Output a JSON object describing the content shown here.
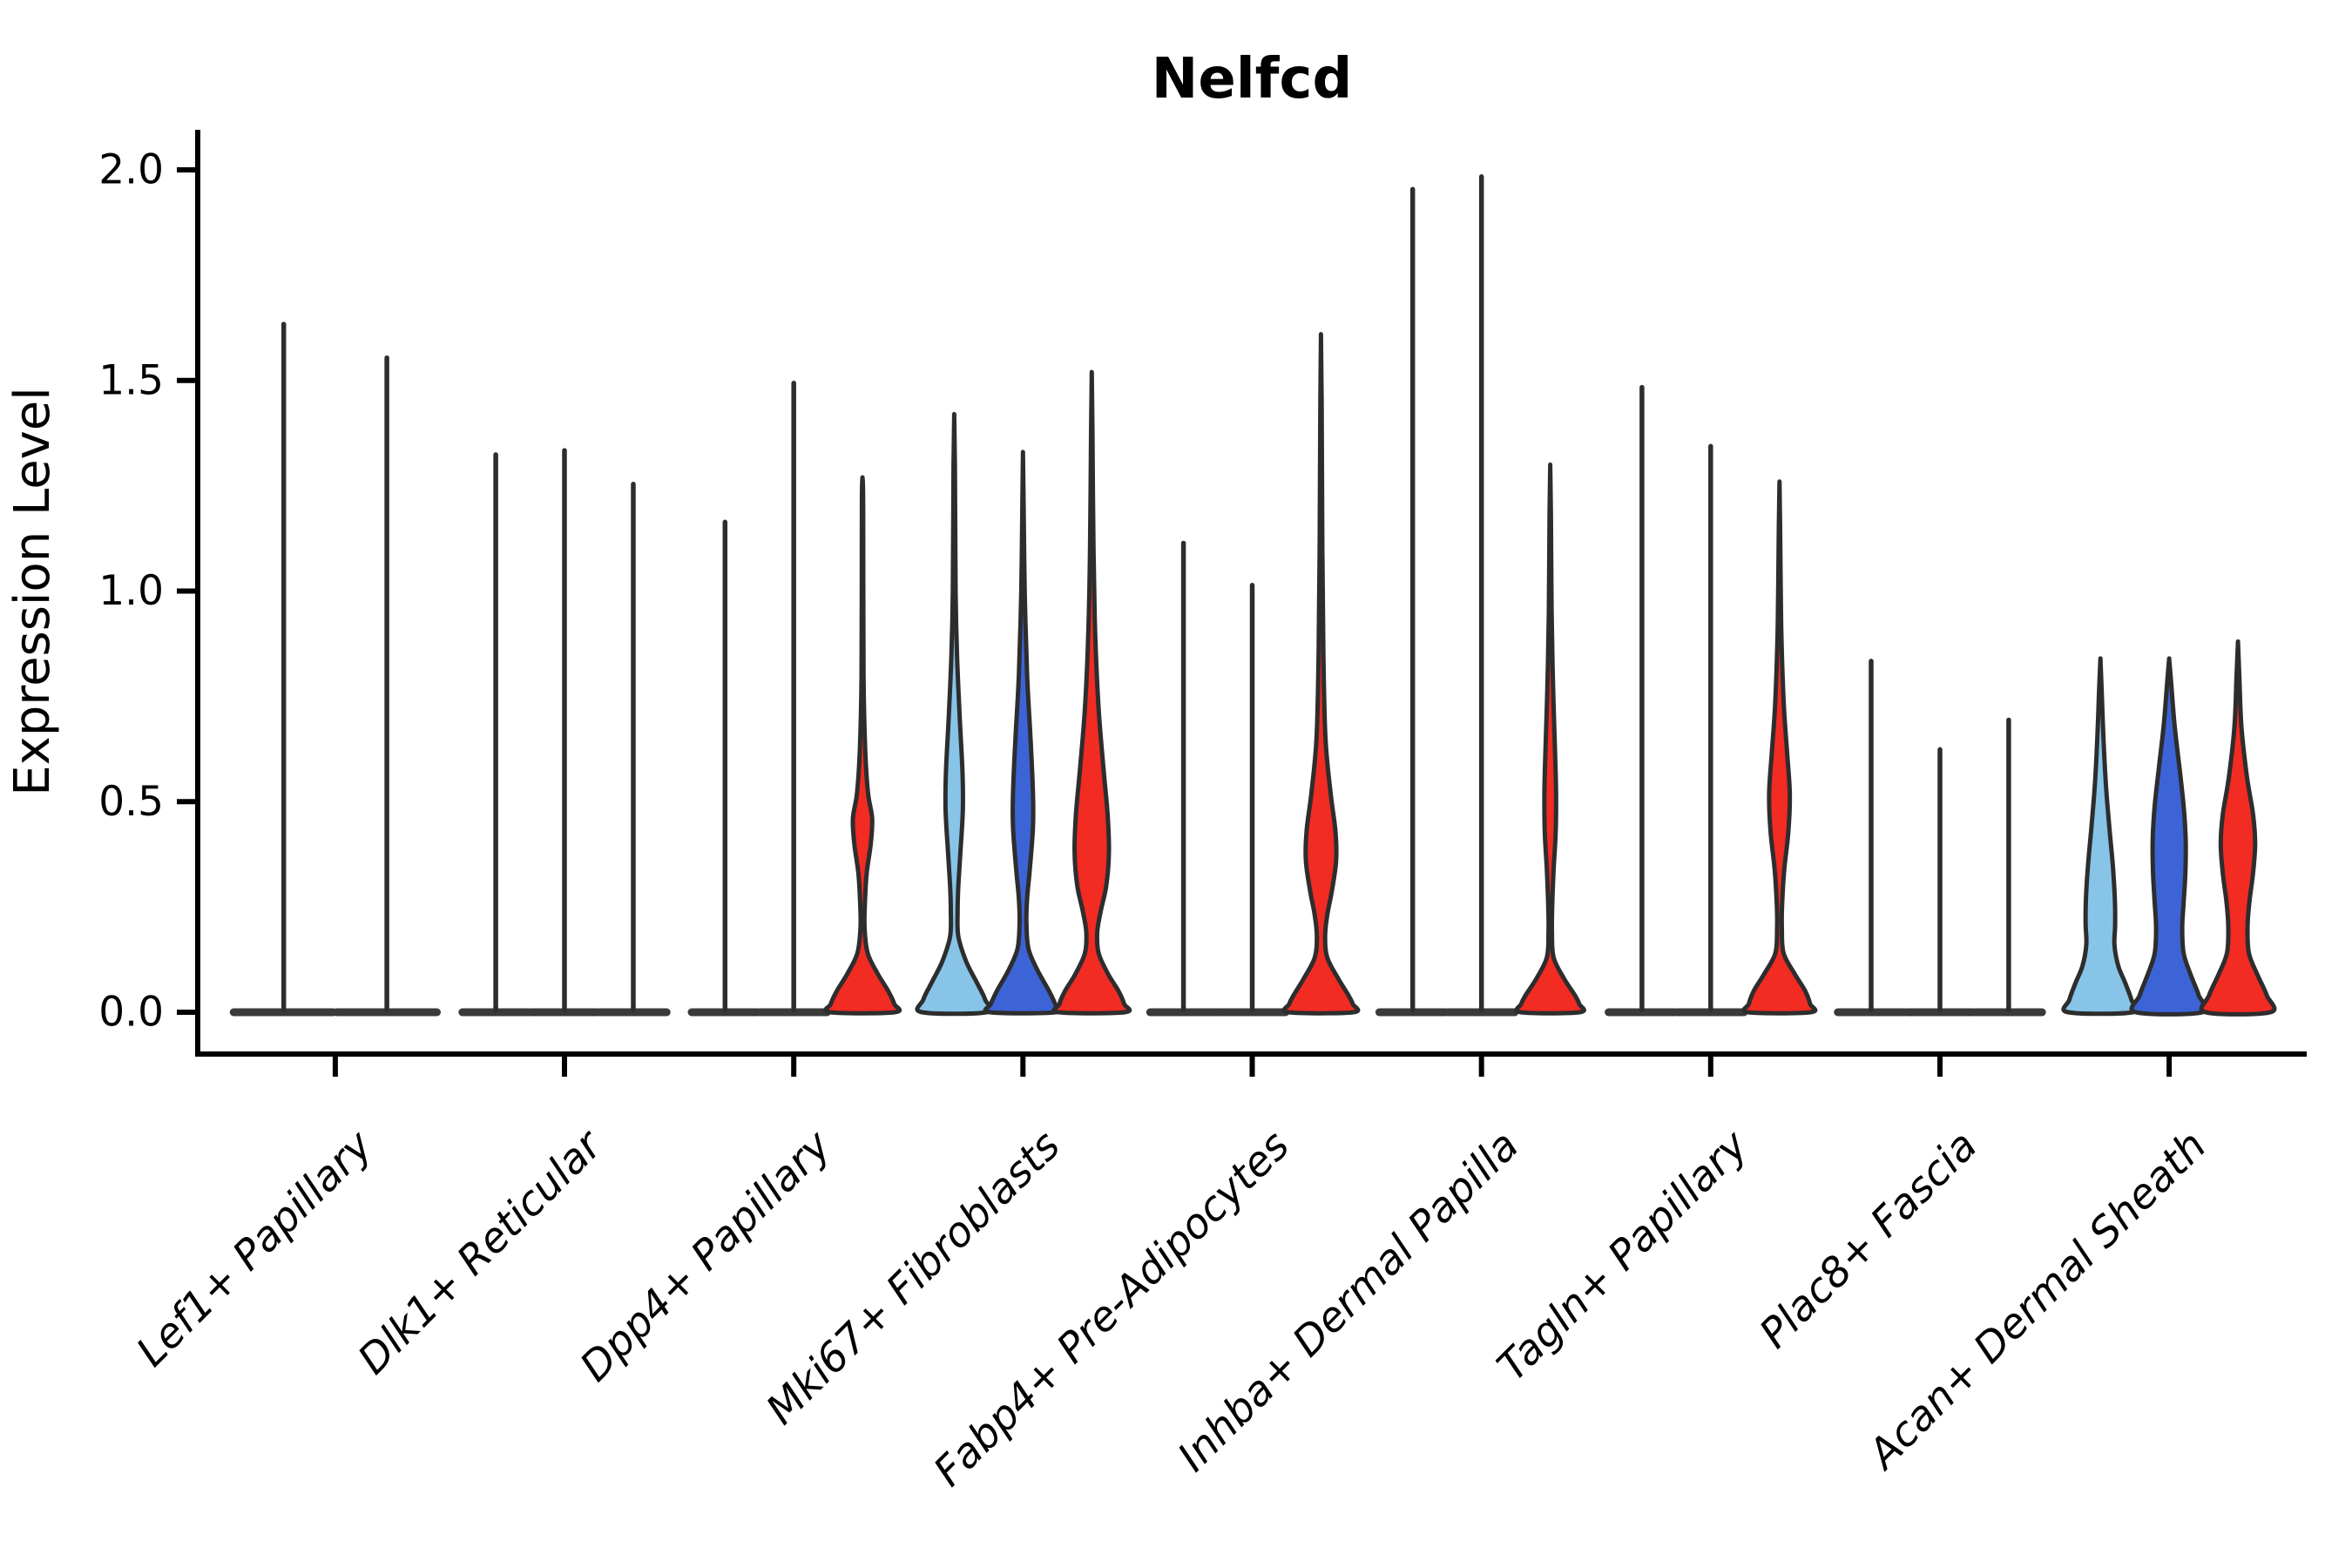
{
  "title": "Nelfcd",
  "axes": {
    "ylabel": "Expression Level",
    "yticks": [
      0.0,
      0.5,
      1.0,
      1.5,
      2.0
    ],
    "ytick_labels": [
      "0.0",
      "0.5",
      "1.0",
      "1.5",
      "2.0"
    ]
  },
  "palette": {
    "position_1": "#87C4E8",
    "position_2": "#3C64D7",
    "position_3": "#F22B23",
    "outline": "#2d2d2d",
    "axis": "#000000"
  },
  "chart_data": {
    "type": "violin",
    "title": "Nelfcd",
    "xlabel": "",
    "ylabel": "Expression Level",
    "ylim": [
      0,
      2.05
    ],
    "grid": false,
    "legend_position": "none",
    "categories": [
      "Lef1+ Papillary",
      "Dlk1+ Reticular",
      "Dpp4+ Papillary",
      "Mki67+ Fibroblasts",
      "Fabp4+ Pre-Adipocytes",
      "Inhba+ Dermal Papilla",
      "Tagln+ Papillary",
      "Plac8+ Fascia",
      "Acan+ Dermal Sheath"
    ],
    "groups": [
      {
        "category": "Lef1+ Papillary",
        "violins": [
          {
            "fill": "position_1",
            "max": 1.64,
            "shape": "spike"
          },
          {
            "fill": "position_2",
            "max": 1.56,
            "shape": "spike"
          }
        ]
      },
      {
        "category": "Dlk1+ Reticular",
        "violins": [
          {
            "fill": "position_1",
            "max": 1.33,
            "shape": "spike"
          },
          {
            "fill": "position_2",
            "max": 1.34,
            "shape": "spike"
          },
          {
            "fill": "position_3",
            "max": 1.26,
            "shape": "spike"
          }
        ]
      },
      {
        "category": "Dpp4+ Papillary",
        "violins": [
          {
            "fill": "position_1",
            "max": 1.17,
            "shape": "spike"
          },
          {
            "fill": "position_2",
            "max": 1.5,
            "shape": "spike"
          },
          {
            "fill": "position_3",
            "max": 1.27,
            "shape": "bulge",
            "profile": [
              [
                1.27,
                0
              ],
              [
                1.2,
                0.02
              ],
              [
                0.8,
                0.03
              ],
              [
                0.62,
                0.08
              ],
              [
                0.52,
                0.16
              ],
              [
                0.46,
                0.28
              ],
              [
                0.4,
                0.24
              ],
              [
                0.33,
                0.12
              ],
              [
                0.26,
                0.07
              ],
              [
                0.2,
                0.06
              ],
              [
                0.14,
                0.15
              ],
              [
                0.09,
                0.45
              ],
              [
                0.05,
                0.75
              ],
              [
                0.02,
                0.92
              ],
              [
                0,
                0.94
              ]
            ]
          }
        ]
      },
      {
        "category": "Mki67+ Fibroblasts",
        "violins": [
          {
            "fill": "position_1",
            "max": 1.42,
            "shape": "bulge",
            "profile": [
              [
                1.42,
                0
              ],
              [
                1.3,
                0.02
              ],
              [
                1.0,
                0.04
              ],
              [
                0.85,
                0.08
              ],
              [
                0.7,
                0.16
              ],
              [
                0.57,
                0.24
              ],
              [
                0.48,
                0.25
              ],
              [
                0.38,
                0.18
              ],
              [
                0.3,
                0.12
              ],
              [
                0.24,
                0.1
              ],
              [
                0.18,
                0.12
              ],
              [
                0.12,
                0.35
              ],
              [
                0.07,
                0.66
              ],
              [
                0.03,
                0.9
              ],
              [
                0,
                0.94
              ]
            ]
          },
          {
            "fill": "position_2",
            "max": 1.33,
            "shape": "bulge",
            "profile": [
              [
                1.33,
                0
              ],
              [
                1.2,
                0.02
              ],
              [
                1.0,
                0.05
              ],
              [
                0.8,
                0.12
              ],
              [
                0.65,
                0.22
              ],
              [
                0.52,
                0.29
              ],
              [
                0.44,
                0.29
              ],
              [
                0.34,
                0.2
              ],
              [
                0.27,
                0.12
              ],
              [
                0.21,
                0.1
              ],
              [
                0.15,
                0.16
              ],
              [
                0.1,
                0.42
              ],
              [
                0.05,
                0.76
              ],
              [
                0.02,
                0.93
              ],
              [
                0,
                0.96
              ]
            ]
          },
          {
            "fill": "position_3",
            "max": 1.52,
            "shape": "bulge",
            "profile": [
              [
                1.52,
                0
              ],
              [
                1.38,
                0.02
              ],
              [
                1.1,
                0.05
              ],
              [
                0.9,
                0.1
              ],
              [
                0.72,
                0.2
              ],
              [
                0.58,
                0.34
              ],
              [
                0.47,
                0.46
              ],
              [
                0.38,
                0.5
              ],
              [
                0.3,
                0.42
              ],
              [
                0.24,
                0.26
              ],
              [
                0.19,
                0.16
              ],
              [
                0.14,
                0.2
              ],
              [
                0.09,
                0.48
              ],
              [
                0.05,
                0.78
              ],
              [
                0.02,
                0.94
              ],
              [
                0,
                0.96
              ]
            ]
          }
        ]
      },
      {
        "category": "Fabp4+ Pre-Adipocytes",
        "violins": [
          {
            "fill": "position_1",
            "max": 1.12,
            "shape": "spike"
          },
          {
            "fill": "position_2",
            "max": 1.02,
            "shape": "spike"
          },
          {
            "fill": "position_3",
            "max": 1.61,
            "shape": "bulge",
            "profile": [
              [
                1.61,
                0
              ],
              [
                1.45,
                0.02
              ],
              [
                1.1,
                0.04
              ],
              [
                0.85,
                0.07
              ],
              [
                0.65,
                0.13
              ],
              [
                0.52,
                0.28
              ],
              [
                0.43,
                0.42
              ],
              [
                0.36,
                0.44
              ],
              [
                0.29,
                0.32
              ],
              [
                0.23,
                0.18
              ],
              [
                0.18,
                0.12
              ],
              [
                0.13,
                0.18
              ],
              [
                0.08,
                0.5
              ],
              [
                0.04,
                0.8
              ],
              [
                0.02,
                0.92
              ],
              [
                0,
                0.94
              ]
            ]
          }
        ]
      },
      {
        "category": "Inhba+ Dermal Papilla",
        "violins": [
          {
            "fill": "position_1",
            "max": 1.96,
            "shape": "spike"
          },
          {
            "fill": "position_2",
            "max": 1.99,
            "shape": "spike"
          },
          {
            "fill": "position_3",
            "max": 1.3,
            "shape": "bulge",
            "profile": [
              [
                1.3,
                0
              ],
              [
                1.18,
                0.02
              ],
              [
                0.95,
                0.04
              ],
              [
                0.78,
                0.08
              ],
              [
                0.62,
                0.14
              ],
              [
                0.52,
                0.17
              ],
              [
                0.43,
                0.16
              ],
              [
                0.34,
                0.1
              ],
              [
                0.26,
                0.06
              ],
              [
                0.19,
                0.05
              ],
              [
                0.13,
                0.1
              ],
              [
                0.08,
                0.4
              ],
              [
                0.04,
                0.72
              ],
              [
                0.02,
                0.84
              ],
              [
                0,
                0.86
              ]
            ]
          }
        ]
      },
      {
        "category": "Tagln+ Papillary",
        "violins": [
          {
            "fill": "position_1",
            "max": 1.49,
            "shape": "spike"
          },
          {
            "fill": "position_2",
            "max": 1.35,
            "shape": "spike"
          },
          {
            "fill": "position_3",
            "max": 1.26,
            "shape": "bulge",
            "profile": [
              [
                1.26,
                0
              ],
              [
                1.15,
                0.02
              ],
              [
                0.92,
                0.05
              ],
              [
                0.74,
                0.12
              ],
              [
                0.62,
                0.22
              ],
              [
                0.52,
                0.3
              ],
              [
                0.43,
                0.26
              ],
              [
                0.34,
                0.14
              ],
              [
                0.26,
                0.08
              ],
              [
                0.2,
                0.07
              ],
              [
                0.14,
                0.12
              ],
              [
                0.09,
                0.45
              ],
              [
                0.05,
                0.75
              ],
              [
                0.02,
                0.89
              ],
              [
                0,
                0.91
              ]
            ]
          }
        ]
      },
      {
        "category": "Plac8+ Fascia",
        "violins": [
          {
            "fill": "position_1",
            "max": 0.84,
            "shape": "spike"
          },
          {
            "fill": "position_2",
            "max": 0.63,
            "shape": "spike"
          },
          {
            "fill": "position_3",
            "max": 0.7,
            "shape": "spike"
          }
        ]
      },
      {
        "category": "Acan+ Dermal Sheath",
        "violins": [
          {
            "fill": "position_1",
            "max": 0.84,
            "shape": "bulge",
            "profile": [
              [
                0.84,
                0
              ],
              [
                0.76,
                0.04
              ],
              [
                0.65,
                0.09
              ],
              [
                0.54,
                0.16
              ],
              [
                0.44,
                0.26
              ],
              [
                0.35,
                0.36
              ],
              [
                0.27,
                0.42
              ],
              [
                0.21,
                0.43
              ],
              [
                0.16,
                0.41
              ],
              [
                0.11,
                0.52
              ],
              [
                0.07,
                0.72
              ],
              [
                0.03,
                0.9
              ],
              [
                0,
                0.94
              ]
            ]
          },
          {
            "fill": "position_2",
            "max": 0.84,
            "shape": "bulge",
            "profile": [
              [
                0.84,
                0
              ],
              [
                0.78,
                0.06
              ],
              [
                0.68,
                0.16
              ],
              [
                0.58,
                0.3
              ],
              [
                0.49,
                0.42
              ],
              [
                0.41,
                0.48
              ],
              [
                0.33,
                0.47
              ],
              [
                0.26,
                0.42
              ],
              [
                0.2,
                0.38
              ],
              [
                0.14,
                0.42
              ],
              [
                0.09,
                0.62
              ],
              [
                0.04,
                0.86
              ],
              [
                0,
                0.97
              ]
            ]
          },
          {
            "fill": "position_3",
            "max": 0.88,
            "shape": "bulge",
            "profile": [
              [
                0.88,
                0
              ],
              [
                0.8,
                0.04
              ],
              [
                0.68,
                0.1
              ],
              [
                0.56,
                0.26
              ],
              [
                0.47,
                0.44
              ],
              [
                0.4,
                0.5
              ],
              [
                0.33,
                0.44
              ],
              [
                0.26,
                0.33
              ],
              [
                0.2,
                0.28
              ],
              [
                0.14,
                0.32
              ],
              [
                0.09,
                0.56
              ],
              [
                0.04,
                0.84
              ],
              [
                0,
                0.94
              ]
            ]
          }
        ]
      }
    ]
  }
}
